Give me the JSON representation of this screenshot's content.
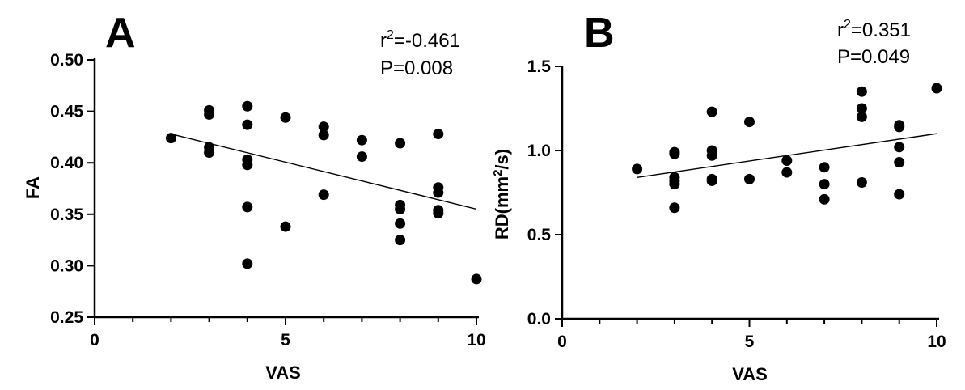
{
  "chart_data": [
    {
      "type": "scatter",
      "panel": "A",
      "xlabel": "VAS",
      "ylabel": "FA",
      "xlim": [
        0,
        10
      ],
      "ylim": [
        0.25,
        0.5
      ],
      "xticks": [
        0,
        5,
        10
      ],
      "xtick_labels": [
        "0",
        "5",
        "10"
      ],
      "yticks": [
        0.25,
        0.3,
        0.35,
        0.4,
        0.45,
        0.5
      ],
      "ytick_labels": [
        "0.25",
        "0.30",
        "0.35",
        "0.40",
        "0.45",
        "0.50"
      ],
      "stats": {
        "r_label": "r",
        "r_exp": "2",
        "r_value": "=-0.461",
        "p_text": "P=0.008"
      },
      "points": [
        {
          "x": 2,
          "y": 0.424
        },
        {
          "x": 3,
          "y": 0.451
        },
        {
          "x": 3,
          "y": 0.447
        },
        {
          "x": 3,
          "y": 0.415
        },
        {
          "x": 3,
          "y": 0.41
        },
        {
          "x": 4,
          "y": 0.455
        },
        {
          "x": 4,
          "y": 0.437
        },
        {
          "x": 4,
          "y": 0.403
        },
        {
          "x": 4,
          "y": 0.398
        },
        {
          "x": 4,
          "y": 0.357
        },
        {
          "x": 4,
          "y": 0.302
        },
        {
          "x": 5,
          "y": 0.444
        },
        {
          "x": 5,
          "y": 0.338
        },
        {
          "x": 6,
          "y": 0.435
        },
        {
          "x": 6,
          "y": 0.427
        },
        {
          "x": 6,
          "y": 0.369
        },
        {
          "x": 7,
          "y": 0.422
        },
        {
          "x": 7,
          "y": 0.406
        },
        {
          "x": 8,
          "y": 0.419
        },
        {
          "x": 8,
          "y": 0.359
        },
        {
          "x": 8,
          "y": 0.355
        },
        {
          "x": 8,
          "y": 0.341
        },
        {
          "x": 8,
          "y": 0.325
        },
        {
          "x": 9,
          "y": 0.428
        },
        {
          "x": 9,
          "y": 0.376
        },
        {
          "x": 9,
          "y": 0.371
        },
        {
          "x": 9,
          "y": 0.354
        },
        {
          "x": 9,
          "y": 0.351
        },
        {
          "x": 10,
          "y": 0.287
        }
      ],
      "fit_line": {
        "x1": 2,
        "y1": 0.428,
        "x2": 10,
        "y2": 0.355
      }
    },
    {
      "type": "scatter",
      "panel": "B",
      "xlabel": "VAS",
      "ylabel_pre": "RD(mm",
      "ylabel_sup": "2",
      "ylabel_post": "/s)",
      "xlim": [
        0,
        10
      ],
      "ylim": [
        0,
        1.5
      ],
      "xticks": [
        0,
        5,
        10
      ],
      "xtick_labels": [
        "0",
        "5",
        "10"
      ],
      "yticks": [
        0,
        0.5,
        1.0,
        1.5
      ],
      "ytick_labels": [
        "0.0",
        "0.5",
        "1.0",
        "1.5"
      ],
      "stats": {
        "r_label": "r",
        "r_exp": "2",
        "r_value": "=0.351",
        "p_text": "P=0.049"
      },
      "points": [
        {
          "x": 2,
          "y": 0.89
        },
        {
          "x": 3,
          "y": 0.99
        },
        {
          "x": 3,
          "y": 0.98
        },
        {
          "x": 3,
          "y": 0.84
        },
        {
          "x": 3,
          "y": 0.82
        },
        {
          "x": 3,
          "y": 0.8
        },
        {
          "x": 3,
          "y": 0.66
        },
        {
          "x": 4,
          "y": 1.23
        },
        {
          "x": 4,
          "y": 1.0
        },
        {
          "x": 4,
          "y": 0.97
        },
        {
          "x": 4,
          "y": 0.83
        },
        {
          "x": 4,
          "y": 0.82
        },
        {
          "x": 5,
          "y": 1.17
        },
        {
          "x": 5,
          "y": 0.83
        },
        {
          "x": 6,
          "y": 0.94
        },
        {
          "x": 6,
          "y": 0.87
        },
        {
          "x": 7,
          "y": 0.9
        },
        {
          "x": 7,
          "y": 0.8
        },
        {
          "x": 7,
          "y": 0.71
        },
        {
          "x": 8,
          "y": 1.35
        },
        {
          "x": 8,
          "y": 1.25
        },
        {
          "x": 8,
          "y": 1.2
        },
        {
          "x": 8,
          "y": 0.81
        },
        {
          "x": 9,
          "y": 1.15
        },
        {
          "x": 9,
          "y": 1.14
        },
        {
          "x": 9,
          "y": 1.02
        },
        {
          "x": 9,
          "y": 0.93
        },
        {
          "x": 9,
          "y": 0.74
        },
        {
          "x": 10,
          "y": 1.37
        }
      ],
      "fit_line": {
        "x1": 2,
        "y1": 0.84,
        "x2": 10,
        "y2": 1.1
      }
    }
  ]
}
